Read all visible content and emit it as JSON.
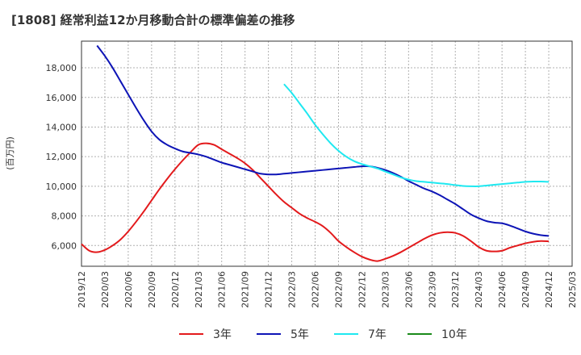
{
  "chart_data": {
    "type": "line",
    "title": "[1808]  経常利益12か月移動合計の標準偏差の推移",
    "ylabel": "(百万円)",
    "xlabel": "",
    "x_start": "2019-12",
    "x_end": "2025-03",
    "ylim": [
      4600,
      19800
    ],
    "y_ticks": [
      6000,
      8000,
      10000,
      12000,
      14000,
      16000,
      18000
    ],
    "y_tick_labels": [
      "6,000",
      "8,000",
      "10,000",
      "12,000",
      "14,000",
      "16,000",
      "18,000"
    ],
    "x_tick_labels": [
      "2019/12",
      "2020/03",
      "2020/06",
      "2020/09",
      "2020/12",
      "2021/03",
      "2021/06",
      "2021/09",
      "2021/12",
      "2022/03",
      "2022/06",
      "2022/09",
      "2022/12",
      "2023/03",
      "2023/06",
      "2023/09",
      "2023/12",
      "2024/03",
      "2024/06",
      "2024/09",
      "2024/12",
      "2025/03"
    ],
    "grid": true,
    "legend_position": "bottom",
    "series": [
      {
        "name": "3年",
        "color": "#e31a1c",
        "x": [
          "2019-12",
          "2020-01",
          "2020-02",
          "2020-03",
          "2020-04",
          "2020-05",
          "2020-06",
          "2020-07",
          "2020-08",
          "2020-09",
          "2020-10",
          "2020-11",
          "2020-12",
          "2021-01",
          "2021-02",
          "2021-03",
          "2021-04",
          "2021-05",
          "2021-06",
          "2021-07",
          "2021-08",
          "2021-09",
          "2021-10",
          "2021-11",
          "2021-12",
          "2022-01",
          "2022-02",
          "2022-03",
          "2022-04",
          "2022-05",
          "2022-06",
          "2022-07",
          "2022-08",
          "2022-09",
          "2022-10",
          "2022-11",
          "2022-12",
          "2023-01",
          "2023-02",
          "2023-03",
          "2023-04",
          "2023-05",
          "2023-06",
          "2023-07",
          "2023-08",
          "2023-09",
          "2023-10",
          "2023-11",
          "2023-12",
          "2024-01",
          "2024-02",
          "2024-03",
          "2024-04",
          "2024-05",
          "2024-06",
          "2024-07",
          "2024-08",
          "2024-09",
          "2024-10",
          "2024-11",
          "2024-12"
        ],
        "values": [
          6100,
          5650,
          5550,
          5700,
          6000,
          6400,
          6950,
          7600,
          8300,
          9050,
          9800,
          10500,
          11150,
          11750,
          12300,
          12800,
          12900,
          12800,
          12500,
          12200,
          11900,
          11550,
          11100,
          10550,
          10000,
          9450,
          8950,
          8550,
          8150,
          7850,
          7600,
          7300,
          6850,
          6300,
          5900,
          5550,
          5250,
          5050,
          4950,
          5100,
          5300,
          5550,
          5850,
          6150,
          6450,
          6700,
          6850,
          6900,
          6850,
          6650,
          6300,
          5900,
          5650,
          5600,
          5650,
          5850,
          6000,
          6150,
          6250,
          6300,
          6280
        ]
      },
      {
        "name": "5年",
        "color": "#0d14b6",
        "x": [
          "2020-02",
          "2020-03",
          "2020-04",
          "2020-05",
          "2020-06",
          "2020-07",
          "2020-08",
          "2020-09",
          "2020-10",
          "2020-11",
          "2020-12",
          "2021-01",
          "2021-02",
          "2021-03",
          "2021-04",
          "2021-05",
          "2021-06",
          "2021-07",
          "2021-08",
          "2021-09",
          "2021-10",
          "2021-11",
          "2021-12",
          "2022-01",
          "2022-02",
          "2022-03",
          "2022-04",
          "2022-05",
          "2022-06",
          "2022-07",
          "2022-08",
          "2022-09",
          "2022-10",
          "2022-11",
          "2022-12",
          "2023-01",
          "2023-02",
          "2023-03",
          "2023-04",
          "2023-05",
          "2023-06",
          "2023-07",
          "2023-08",
          "2023-09",
          "2023-10",
          "2023-11",
          "2023-12",
          "2024-01",
          "2024-02",
          "2024-03",
          "2024-04",
          "2024-05",
          "2024-06",
          "2024-07",
          "2024-08",
          "2024-09",
          "2024-10",
          "2024-11",
          "2024-12"
        ],
        "values": [
          19500,
          18800,
          18000,
          17100,
          16200,
          15300,
          14450,
          13700,
          13150,
          12800,
          12550,
          12350,
          12250,
          12150,
          12000,
          11800,
          11600,
          11450,
          11300,
          11150,
          11000,
          10850,
          10800,
          10800,
          10850,
          10900,
          10950,
          11000,
          11050,
          11100,
          11150,
          11200,
          11250,
          11300,
          11350,
          11350,
          11250,
          11100,
          10900,
          10650,
          10350,
          10100,
          9850,
          9650,
          9400,
          9100,
          8800,
          8450,
          8100,
          7850,
          7650,
          7550,
          7500,
          7350,
          7150,
          6950,
          6800,
          6700,
          6650
        ]
      },
      {
        "name": "7年",
        "color": "#1ee8f0",
        "x": [
          "2022-02",
          "2022-03",
          "2022-04",
          "2022-05",
          "2022-06",
          "2022-07",
          "2022-08",
          "2022-09",
          "2022-10",
          "2022-11",
          "2022-12",
          "2023-01",
          "2023-02",
          "2023-03",
          "2023-04",
          "2023-05",
          "2023-06",
          "2023-07",
          "2023-08",
          "2023-09",
          "2023-10",
          "2023-11",
          "2023-12",
          "2024-01",
          "2024-02",
          "2024-03",
          "2024-04",
          "2024-05",
          "2024-06",
          "2024-07",
          "2024-08",
          "2024-09",
          "2024-10",
          "2024-11",
          "2024-12"
        ],
        "values": [
          16900,
          16300,
          15600,
          14900,
          14150,
          13500,
          12900,
          12400,
          12000,
          11700,
          11500,
          11350,
          11200,
          11000,
          10800,
          10600,
          10450,
          10350,
          10300,
          10250,
          10200,
          10150,
          10080,
          10020,
          10000,
          10000,
          10050,
          10100,
          10150,
          10200,
          10250,
          10300,
          10320,
          10320,
          10300
        ]
      },
      {
        "name": "10年",
        "color": "#1a8a1a",
        "x": [],
        "values": []
      }
    ]
  }
}
